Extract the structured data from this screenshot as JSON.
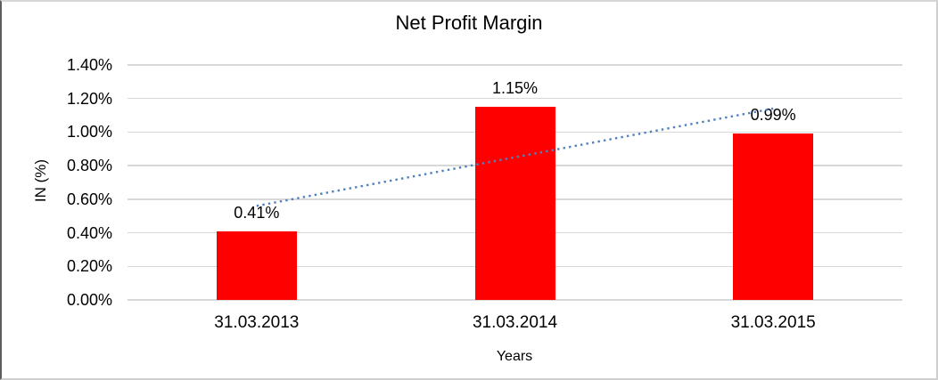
{
  "figure": {
    "background": "#ffffff",
    "frame_color": "#cfcfcf",
    "frame_left_color": "#5e5e5e"
  },
  "chart_data": {
    "type": "bar",
    "title": "Net Profit Margin",
    "categories": [
      "31.03.2013",
      "31.03.2014",
      "31.03.2015"
    ],
    "values": [
      0.41,
      1.15,
      0.99
    ],
    "value_labels": [
      "0.41%",
      "1.15%",
      "0.99%"
    ],
    "xlabel": "Years",
    "ylabel": "IN (%)",
    "ylim": [
      0,
      1.4
    ],
    "ytick_step": 0.2,
    "ytick_labels": [
      "0.00%",
      "0.20%",
      "0.40%",
      "0.60%",
      "0.80%",
      "1.00%",
      "1.20%",
      "1.40%"
    ],
    "legend": "none",
    "grid": "horizontal-only",
    "bar_color": "#ff0000",
    "gridline_color": "#d8d8d8",
    "text_color": "#000000",
    "trendline": {
      "type": "linear",
      "style": "dotted",
      "color": "#4f81bd",
      "start_value": 0.56,
      "end_value": 1.14
    }
  }
}
